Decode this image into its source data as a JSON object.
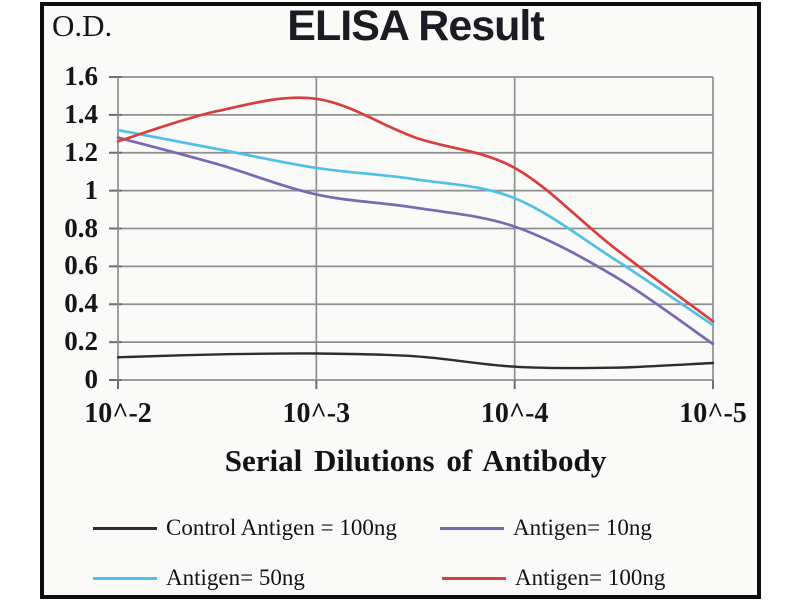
{
  "window": {
    "od_corner_label": "O.D."
  },
  "chart_data": {
    "type": "line",
    "title": "ELISA Result",
    "xlabel": "Serial Dilutions  of Antibody",
    "ylabel": "O.D.",
    "ylim": [
      0,
      1.6
    ],
    "grid": true,
    "legend_position": "bottom",
    "x_exponent_points": [
      -2,
      -2.5,
      -3,
      -3.5,
      -4,
      -4.5,
      -5
    ],
    "x_tick_labels": [
      "10^-2",
      "10^-3",
      "10^-4",
      "10^-5"
    ],
    "x_tick_positions": [
      0,
      1,
      2,
      3
    ],
    "y_ticks": [
      "1.6",
      "1.4",
      "1.2",
      "1",
      "0.8",
      "0.6",
      "0.4",
      "0.2",
      "0"
    ],
    "series": [
      {
        "name": "Control Antigen = 100ng",
        "color": "#2d2d2d",
        "values": [
          0.12,
          0.135,
          0.14,
          0.125,
          0.07,
          0.065,
          0.09
        ]
      },
      {
        "name": "Antigen= 10ng",
        "color": "#7c68b2",
        "values": [
          1.28,
          1.14,
          0.98,
          0.91,
          0.81,
          0.55,
          0.19
        ]
      },
      {
        "name": "Antigen= 50ng",
        "color": "#52c0e6",
        "values": [
          1.32,
          1.22,
          1.12,
          1.06,
          0.96,
          0.64,
          0.29
        ]
      },
      {
        "name": "Antigen= 100ng",
        "color": "#d83e3e",
        "values": [
          1.26,
          1.42,
          1.485,
          1.28,
          1.12,
          0.7,
          0.31
        ]
      }
    ],
    "colors": {
      "gridline": "#8f8f8f",
      "frame": "#0e0e0e",
      "plot_bg": "#fafaf8"
    }
  }
}
